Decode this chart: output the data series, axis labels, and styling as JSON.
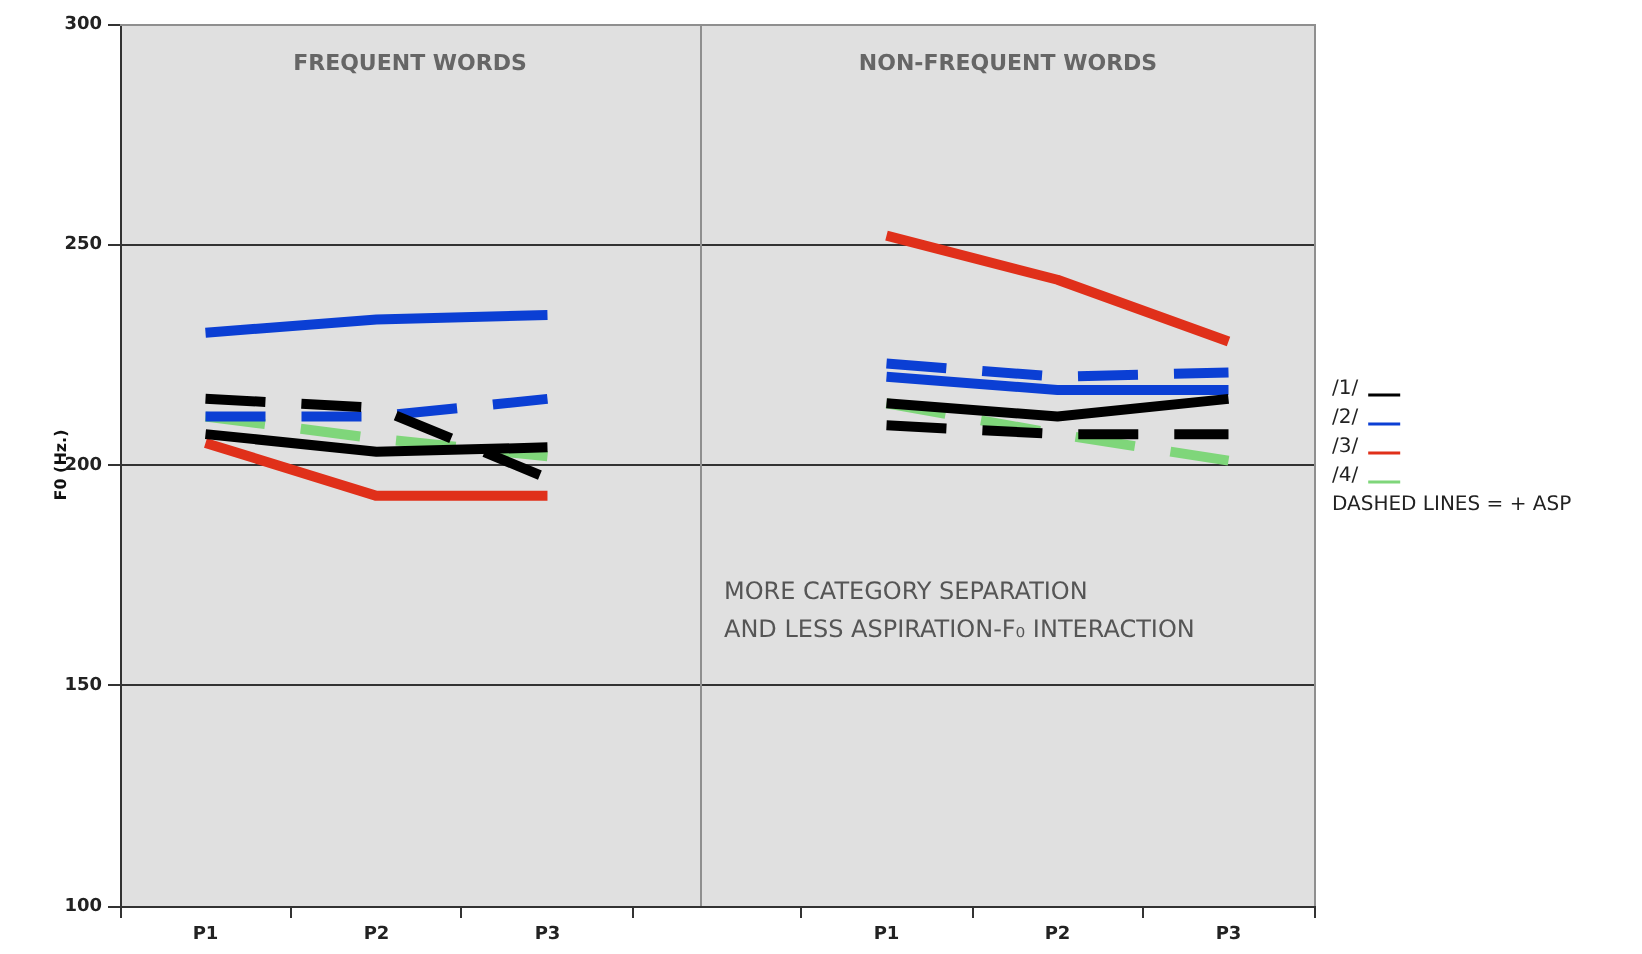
{
  "chart_data": [
    {
      "type": "line",
      "title": "FREQUENT WORDS",
      "ylabel": "F0 (Hz.)",
      "categories": [
        "P1",
        "P2",
        "P3"
      ],
      "ylim": [
        100,
        300
      ],
      "yticks": [
        100,
        150,
        200,
        250,
        300
      ],
      "grid": "y",
      "series": [
        {
          "color": "#000000",
          "line_style": "solid",
          "values": [
            207,
            203,
            204
          ]
        },
        {
          "color": "#0b3fd4",
          "line_style": "solid",
          "values": [
            230,
            233,
            234
          ]
        },
        {
          "color": "#e0301a",
          "line_style": "solid",
          "values": [
            205,
            193,
            193
          ]
        },
        {
          "color": "#000000",
          "line_style": "dashed",
          "values": [
            215,
            213,
            197
          ]
        },
        {
          "color": "#0b3fd4",
          "line_style": "dashed",
          "values": [
            211,
            211,
            215
          ]
        },
        {
          "color": "#7fd67a",
          "line_style": "dashed",
          "values": [
            211,
            206,
            202
          ]
        }
      ]
    },
    {
      "type": "line",
      "title": "NON-FREQUENT WORDS",
      "categories": [
        "P1",
        "P2",
        "P3"
      ],
      "ylim": [
        100,
        300
      ],
      "yticks": [
        100,
        150,
        200,
        250,
        300
      ],
      "grid": "y",
      "tick_labels": "x",
      "legend": "right",
      "annotations": [
        "MORE CATEGORY SEPARATION\nAND LESS ASPIRATION-F₀ INTERACTION",
        "DASHED LINES = + ASP"
      ],
      "series": [
        {
          "name": "/1/",
          "color": "#000000",
          "line_style": "solid",
          "values": [
            214,
            211,
            215
          ]
        },
        {
          "name": "/2/",
          "color": "#0b3fd4",
          "line_style": "solid",
          "values": [
            220,
            217,
            217
          ]
        },
        {
          "name": "/3/",
          "color": "#e0301a",
          "line_style": "solid",
          "values": [
            252,
            242,
            228
          ]
        },
        {
          "color": "#000000",
          "line_style": "dashed",
          "values": [
            209,
            207,
            207
          ]
        },
        {
          "color": "#0b3fd4",
          "line_style": "dashed",
          "values": [
            223,
            220,
            221
          ]
        },
        {
          "name": "/4/",
          "color": "#7fd67a",
          "line_style": "dashed",
          "values": [
            214,
            207,
            201
          ]
        }
      ]
    }
  ]
}
